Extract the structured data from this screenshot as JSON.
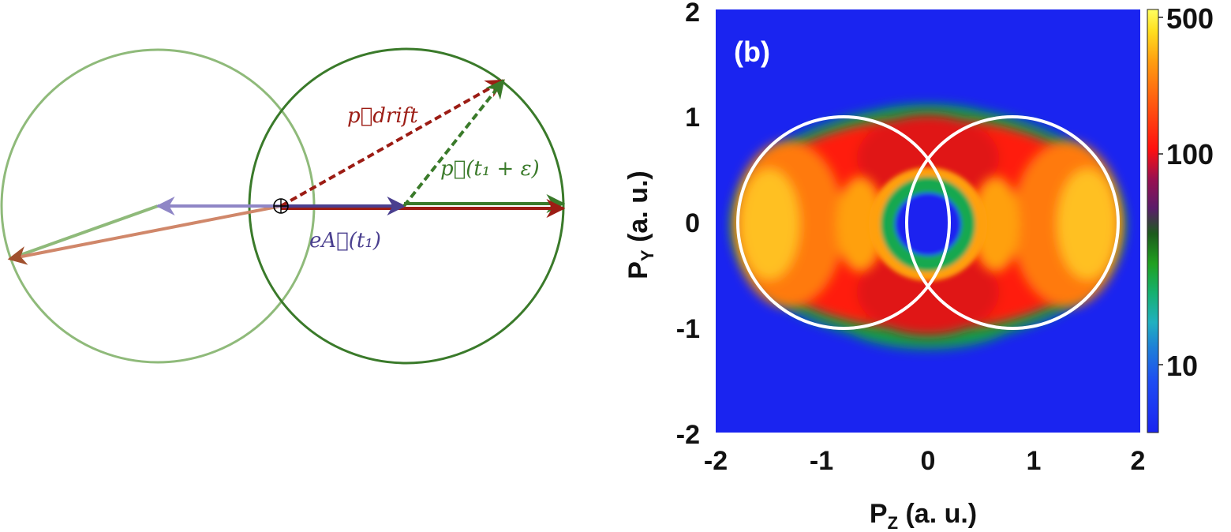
{
  "diagram": {
    "label_p_drift": "p⃗drift",
    "label_p_t1": "p⃗(t₁ + ε)",
    "label_eA": "eA⃗(t₁)",
    "colors": {
      "light_green": "#8fba7a",
      "dark_green": "#3a7a2a",
      "dark_red": "#9c1c14",
      "purple": "#4a3f8f",
      "light_purple": "#8f86c6",
      "salmon": "#d0876a"
    }
  },
  "chart_data": {
    "type": "heatmap",
    "panel_label": "(b)",
    "xlabel": "P",
    "xlabel_sub": "Z",
    "xlabel_suffix": " (a. u.)",
    "ylabel": "P",
    "ylabel_sub": "Y",
    "ylabel_suffix": " (a. u.)",
    "xlim": [
      -2,
      2
    ],
    "ylim": [
      -2,
      2
    ],
    "x_ticks": [
      "-2",
      "-1",
      "0",
      "1",
      "2"
    ],
    "y_ticks": [
      "2",
      "1",
      "0",
      "-1",
      "-2"
    ],
    "colorbar": {
      "scale": "log",
      "range": [
        5,
        500
      ],
      "tick_labels": [
        "500",
        "100",
        "10"
      ],
      "tick_values": [
        500,
        100,
        10
      ]
    },
    "overlay_circles": [
      {
        "center": [
          -0.8,
          0
        ],
        "radius": 0.95
      },
      {
        "center": [
          0.8,
          0
        ],
        "radius": 0.95
      }
    ],
    "colors": {
      "background": "#1a24f0",
      "overlay": "#ffffff"
    }
  }
}
